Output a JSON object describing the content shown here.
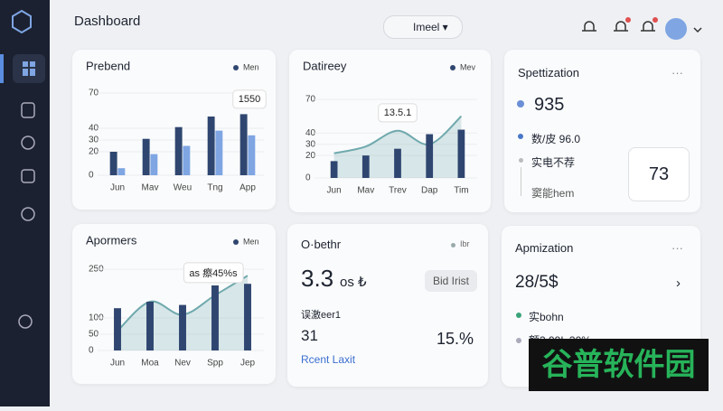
{
  "header": {
    "title": "Dashboard",
    "dropdown": "Imeel"
  },
  "chart_data": [
    {
      "type": "bar",
      "title": "Prebend",
      "annotation": "1550",
      "categories": [
        "Jun",
        "Mav",
        "Weu",
        "Tng",
        "App"
      ],
      "ylim": [
        0,
        70
      ],
      "yticks": [
        0,
        20,
        30,
        40,
        70
      ],
      "series": [
        {
          "name": "Men",
          "color": "#2f4670",
          "values": [
            20,
            31,
            41,
            50,
            52
          ]
        },
        {
          "color": "#7fa5e3",
          "values": [
            6,
            18,
            25,
            38,
            34
          ]
        }
      ]
    },
    {
      "type": "bar",
      "title": "Datireey",
      "annotation": "13.5.1",
      "categories": [
        "Jun",
        "Mav",
        "Trev",
        "Dap",
        "Tim"
      ],
      "ylim": [
        0,
        70
      ],
      "yticks": [
        0,
        20,
        30,
        40,
        70
      ],
      "series": [
        {
          "type": "area",
          "color": "#6fa9ad",
          "values": [
            22,
            28,
            42,
            30,
            55
          ]
        },
        {
          "name": "Mev",
          "color": "#2f4670",
          "values": [
            15,
            20,
            26,
            39,
            43
          ]
        }
      ]
    },
    {
      "type": "bar",
      "title": "Apormers",
      "annotation": "as 瘵45%s",
      "categories": [
        "Jun",
        "Moa",
        "Nev",
        "Spp",
        "Jep"
      ],
      "ylim": [
        0,
        250
      ],
      "yticks": [
        0,
        50,
        100,
        250
      ],
      "series": [
        {
          "type": "area",
          "color": "#6fa9ad",
          "values": [
            60,
            150,
            110,
            170,
            230
          ]
        },
        {
          "name": "Men",
          "color": "#2f4670",
          "values": [
            130,
            150,
            140,
            200,
            205
          ]
        }
      ]
    }
  ],
  "spec": {
    "title": "Spettization",
    "more": "···",
    "main": "935",
    "line1": "数/皮 96.0",
    "line2": "实电不荐",
    "line3": "窦能hem",
    "box": "73"
  },
  "other": {
    "title": "O·bethr",
    "legend": "Ibr",
    "big": "3.3",
    "big_unit": "os ₺",
    "button": "Bid Irist",
    "sub": "误激eer1",
    "n1": "31",
    "n2": "15.%",
    "link": "Rcent Laxit"
  },
  "apm": {
    "title": "Apmization",
    "more": "···",
    "main": "28/5$",
    "arrow": "›",
    "line1": "实bohn",
    "line2": "额3.99L 30%"
  },
  "watermark": "谷普软件园"
}
